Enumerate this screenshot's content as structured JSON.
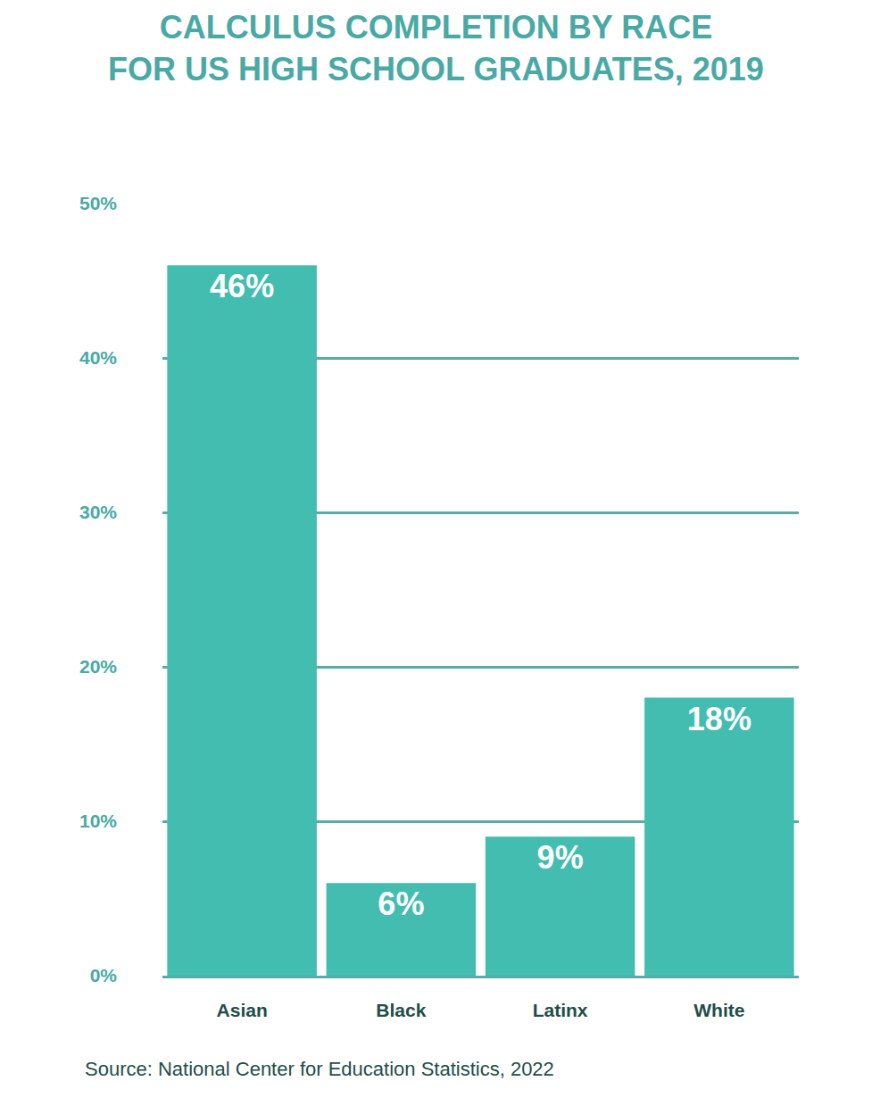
{
  "chart_data": {
    "type": "bar",
    "title": "CALCULUS COMPLETION BY RACE\nFOR US HIGH SCHOOL GRADUATES, 2019",
    "categories": [
      "Asian",
      "Black",
      "Latinx",
      "White"
    ],
    "values": [
      46,
      6,
      9,
      18
    ],
    "value_labels": [
      "46%",
      "6%",
      "9%",
      "18%"
    ],
    "data_labels": true,
    "color": "#42bdb0",
    "ylim": [
      0,
      50
    ],
    "yticks": [
      {
        "value": 0,
        "label": "0%"
      },
      {
        "value": 10,
        "label": "10%"
      },
      {
        "value": 20,
        "label": "20%"
      },
      {
        "value": 30,
        "label": "30%"
      },
      {
        "value": 40,
        "label": "40%"
      },
      {
        "value": 50,
        "label": "50%"
      }
    ],
    "grid": true,
    "source": "Source: National Center for Education Statistics, 2022"
  }
}
